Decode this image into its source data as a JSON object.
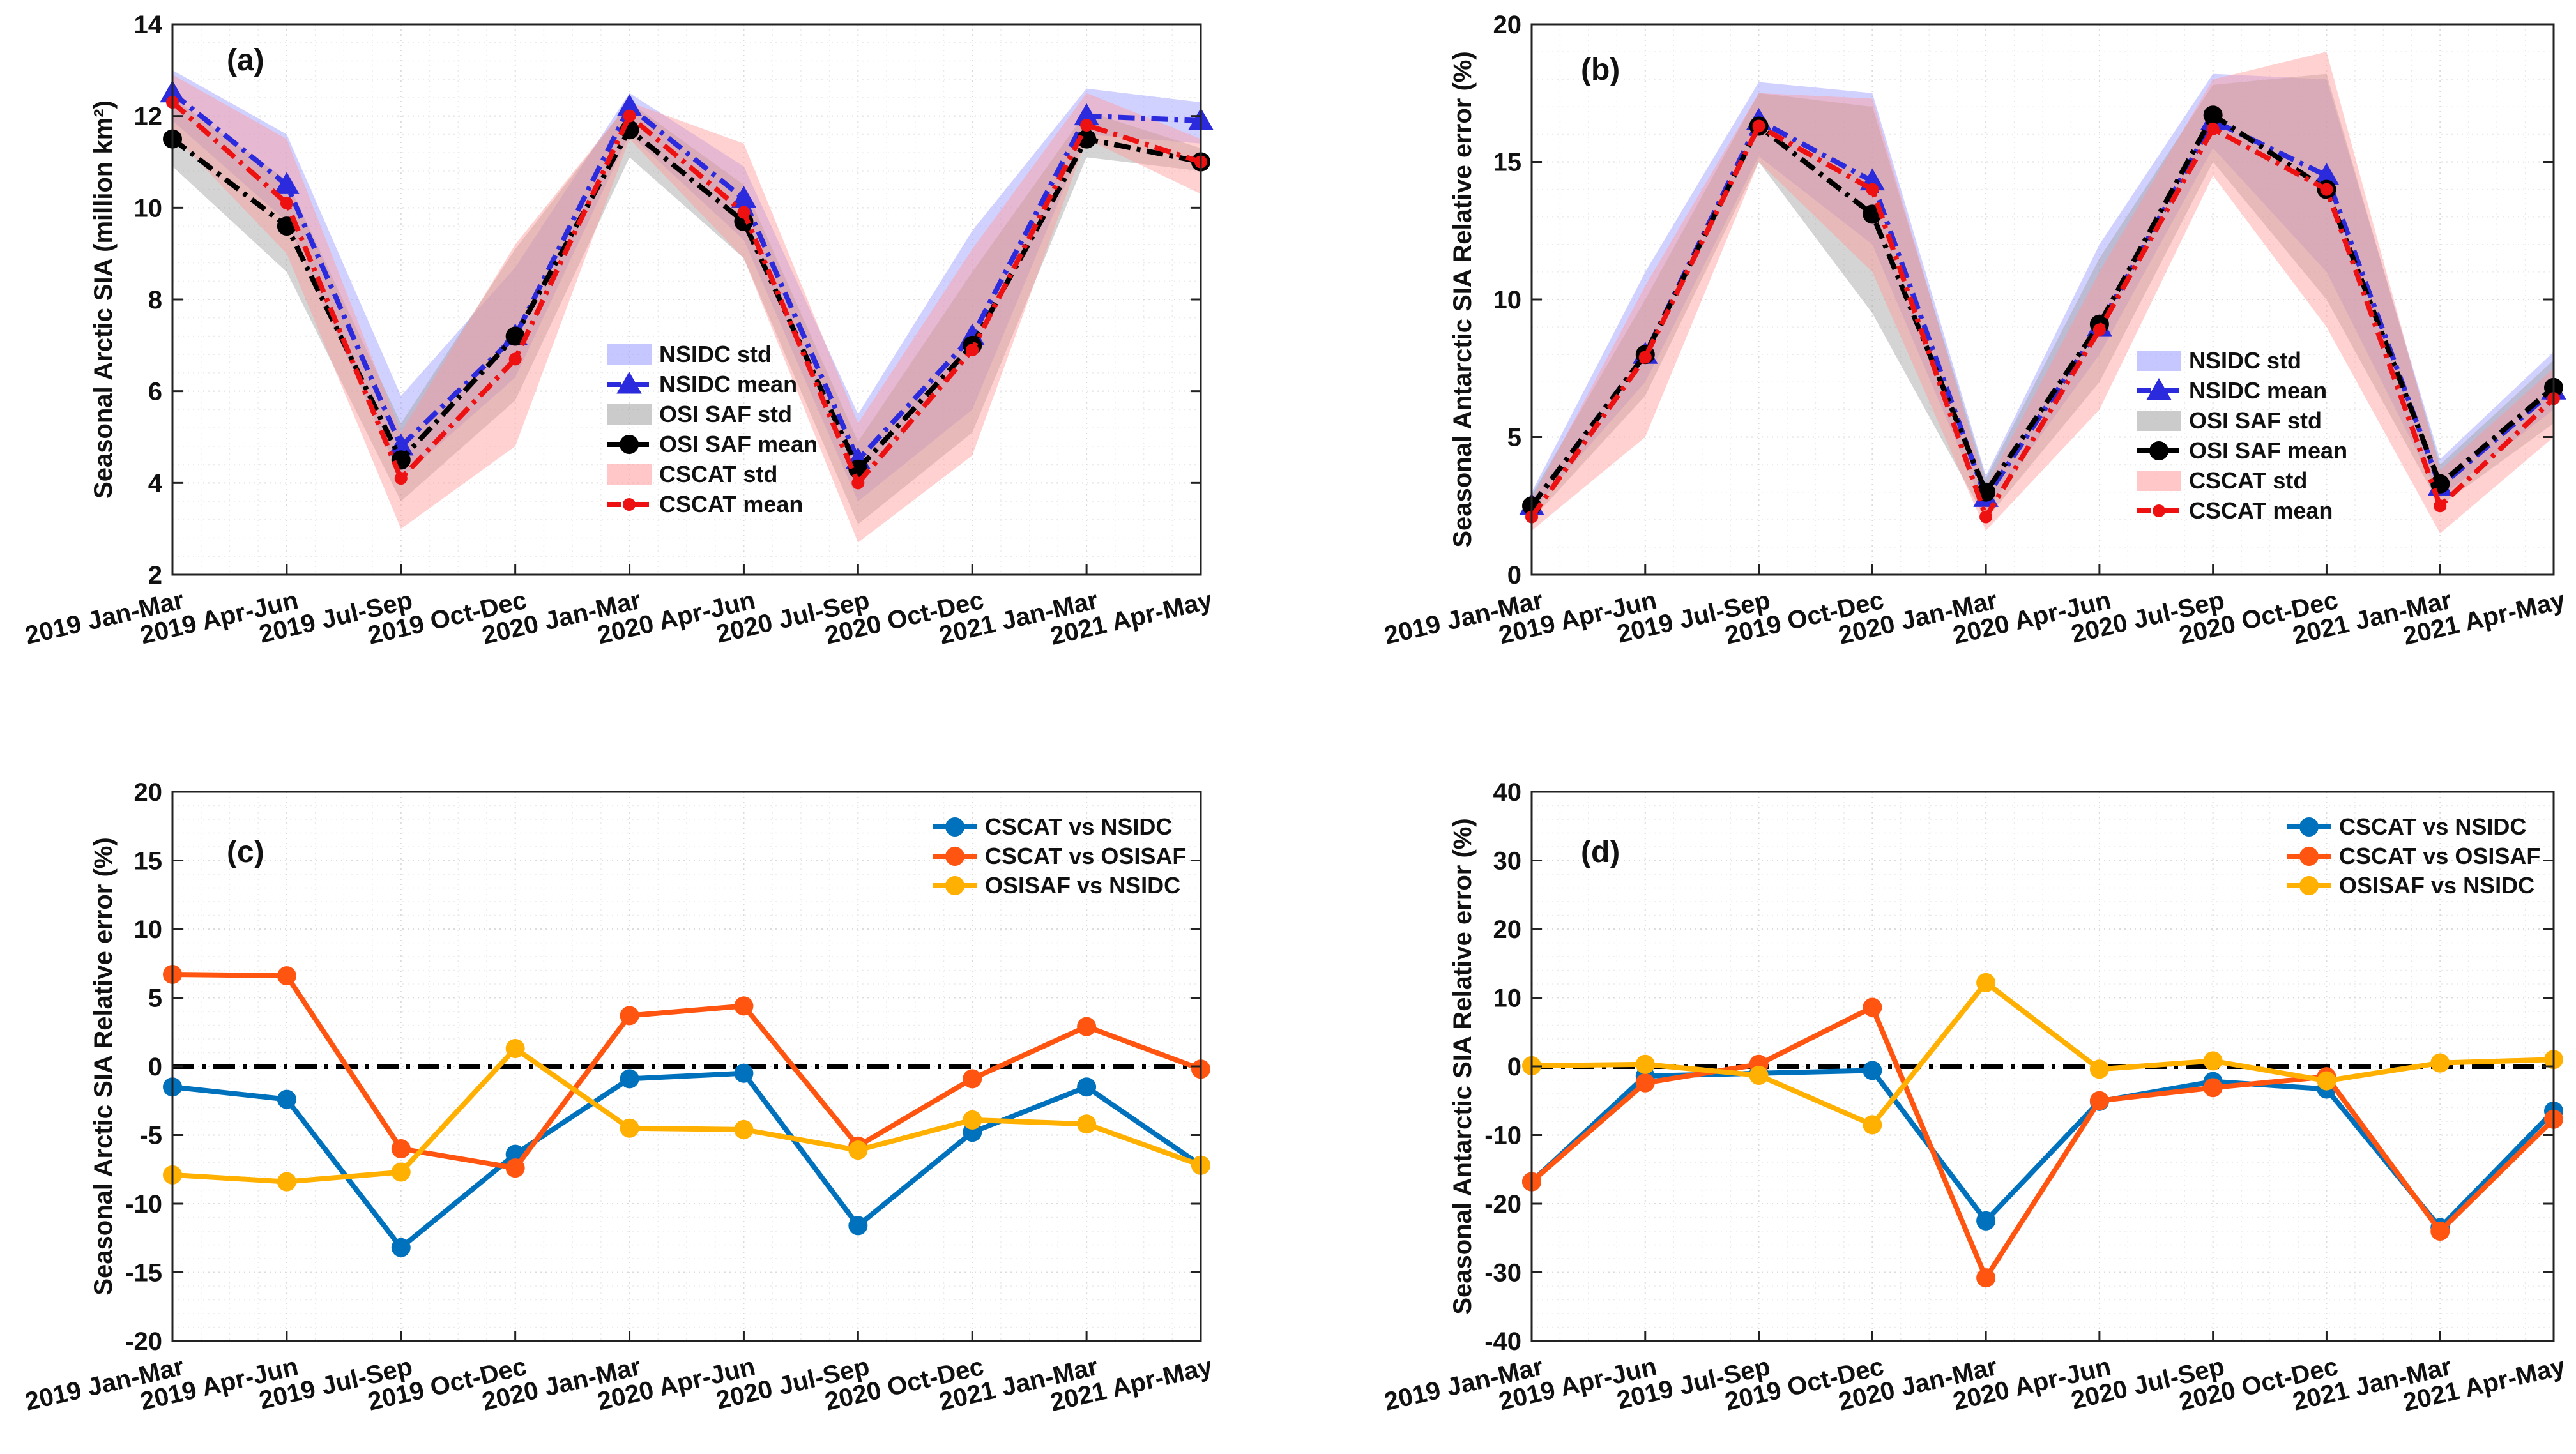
{
  "chart_data": [
    {
      "id": "a",
      "type": "line_band",
      "panel_label": "(a)",
      "ylabel": "Seasonal Arctic SIA (million km²)",
      "ylim": [
        2,
        14
      ],
      "yticks": [
        2,
        4,
        6,
        8,
        10,
        12,
        14
      ],
      "categories": [
        "2019 Jan-Mar",
        "2019 Apr-Jun",
        "2019 Jul-Sep",
        "2019 Oct-Dec",
        "2020 Jan-Mar",
        "2020 Apr-Jun",
        "2020 Jul-Sep",
        "2020 Oct-Dec",
        "2021 Jan-Mar",
        "2021 Apr-May"
      ],
      "legend_position": "center-right",
      "bands": [
        {
          "name": "NSIDC std",
          "color": "#9999ff",
          "lower": [
            11.9,
            9.7,
            4.1,
            6.3,
            11.6,
            9.3,
            3.6,
            5.6,
            11.6,
            11.4
          ],
          "upper": [
            13.0,
            11.6,
            5.9,
            8.7,
            12.5,
            10.9,
            5.5,
            9.5,
            12.6,
            12.3
          ]
        },
        {
          "name": "OSI SAF std",
          "color": "#a0a0a0",
          "lower": [
            10.9,
            8.6,
            3.6,
            5.8,
            11.1,
            8.9,
            3.1,
            5.1,
            11.1,
            10.8
          ],
          "upper": [
            12.4,
            10.6,
            5.3,
            9.1,
            12.3,
            10.5,
            4.9,
            8.6,
            12.1,
            11.3
          ]
        },
        {
          "name": "CSCAT std",
          "color": "#ff9999",
          "lower": [
            11.6,
            9.0,
            3.0,
            4.8,
            11.5,
            8.9,
            2.7,
            4.6,
            11.5,
            10.3
          ],
          "upper": [
            12.9,
            11.5,
            5.1,
            9.2,
            12.3,
            11.4,
            5.3,
            9.1,
            12.5,
            11.5
          ]
        }
      ],
      "series": [
        {
          "name": "NSIDC mean",
          "color": "#2b2bdd",
          "marker": "triangle",
          "values": [
            12.5,
            10.5,
            4.8,
            7.2,
            12.2,
            10.2,
            4.5,
            7.2,
            12.0,
            11.9
          ]
        },
        {
          "name": "OSI SAF mean",
          "color": "#000000",
          "marker": "circle",
          "values": [
            11.5,
            9.6,
            4.5,
            7.2,
            11.7,
            9.7,
            4.3,
            7.0,
            11.5,
            11.0
          ]
        },
        {
          "name": "CSCAT mean",
          "color": "#ee1111",
          "marker": "dot",
          "values": [
            12.3,
            10.1,
            4.1,
            6.7,
            12.0,
            9.9,
            4.0,
            6.9,
            11.8,
            11.0
          ]
        }
      ],
      "legend": [
        "NSIDC std",
        "NSIDC mean",
        "OSI SAF std",
        "OSI SAF mean",
        "CSCAT std",
        "CSCAT mean"
      ]
    },
    {
      "id": "b",
      "type": "line_band",
      "panel_label": "(b)",
      "ylabel": "Seasonal Antarctic SIA Relative error (%)",
      "ylim": [
        0,
        20
      ],
      "yticks": [
        0,
        5,
        10,
        15,
        20
      ],
      "categories": [
        "2019 Jan-Mar",
        "2019 Apr-Jun",
        "2019 Jul-Sep",
        "2019 Oct-Dec",
        "2020 Jan-Mar",
        "2020 Apr-Jun",
        "2020 Jul-Sep",
        "2020 Oct-Dec",
        "2021 Jan-Mar",
        "2021 Apr-May"
      ],
      "legend_position": "center-right",
      "bands": [
        {
          "name": "NSIDC std",
          "color": "#9999ff",
          "lower": [
            2.3,
            7.0,
            15.2,
            12.0,
            2.3,
            8.0,
            15.5,
            11.0,
            2.8,
            6.0
          ],
          "upper": [
            3.0,
            11.0,
            17.9,
            17.5,
            3.6,
            12.0,
            18.2,
            18.0,
            4.2,
            8.1
          ]
        },
        {
          "name": "OSI SAF std",
          "color": "#a0a0a0",
          "lower": [
            2.0,
            6.5,
            15.0,
            9.5,
            2.0,
            7.0,
            15.0,
            10.0,
            2.5,
            5.5
          ],
          "upper": [
            2.9,
            10.0,
            17.5,
            17.0,
            3.5,
            11.5,
            17.8,
            18.2,
            4.0,
            7.8
          ]
        },
        {
          "name": "CSCAT std",
          "color": "#ff9999",
          "lower": [
            1.6,
            5.0,
            15.0,
            11.0,
            1.6,
            6.0,
            14.5,
            9.0,
            1.5,
            5.0
          ],
          "upper": [
            2.7,
            10.5,
            17.5,
            17.3,
            3.2,
            11.0,
            18.0,
            19.0,
            3.8,
            7.5
          ]
        }
      ],
      "series": [
        {
          "name": "NSIDC mean",
          "color": "#2b2bdd",
          "marker": "triangle",
          "values": [
            2.5,
            8.0,
            16.5,
            14.3,
            2.8,
            9.0,
            16.5,
            14.5,
            3.2,
            6.7
          ]
        },
        {
          "name": "OSI SAF mean",
          "color": "#000000",
          "marker": "circle",
          "values": [
            2.5,
            8.0,
            16.3,
            13.1,
            3.0,
            9.1,
            16.7,
            14.0,
            3.3,
            6.8
          ]
        },
        {
          "name": "CSCAT mean",
          "color": "#ee1111",
          "marker": "dot",
          "values": [
            2.1,
            7.9,
            16.3,
            14.0,
            2.1,
            8.9,
            16.2,
            14.0,
            2.5,
            6.4
          ]
        }
      ],
      "legend": [
        "NSIDC std",
        "NSIDC mean",
        "OSI SAF std",
        "OSI SAF mean",
        "CSCAT std",
        "CSCAT mean"
      ]
    },
    {
      "id": "c",
      "type": "line",
      "panel_label": "(c)",
      "ylabel": "Seasonal Arctic SIA Relative error (%)",
      "ylim": [
        -20,
        20
      ],
      "yticks": [
        -20,
        -15,
        -10,
        -5,
        0,
        5,
        10,
        15,
        20
      ],
      "categories": [
        "2019 Jan-Mar",
        "2019 Apr-Jun",
        "2019 Jul-Sep",
        "2019 Oct-Dec",
        "2020 Jan-Mar",
        "2020 Apr-Jun",
        "2020 Jul-Sep",
        "2020 Oct-Dec",
        "2021 Jan-Mar",
        "2021 Apr-May"
      ],
      "legend_position": "top-right",
      "reference_line": 0,
      "series": [
        {
          "name": "CSCAT vs NSIDC",
          "color": "#0072bd",
          "values": [
            -1.5,
            -2.4,
            -13.2,
            -6.4,
            -0.9,
            -0.5,
            -11.6,
            -4.8,
            -1.5,
            -7.2
          ]
        },
        {
          "name": "CSCAT vs OSISAF",
          "color": "#ff5511",
          "values": [
            6.7,
            6.6,
            -6.0,
            -7.4,
            3.7,
            4.4,
            -5.8,
            -0.9,
            2.9,
            -0.2
          ]
        },
        {
          "name": "OSISAF vs NSIDC",
          "color": "#ffb000",
          "values": [
            -7.9,
            -8.4,
            -7.7,
            1.3,
            -4.5,
            -4.6,
            -6.1,
            -3.9,
            -4.2,
            -7.2
          ]
        }
      ],
      "legend": [
        "CSCAT vs NSIDC",
        "CSCAT vs OSISAF",
        "OSISAF vs NSIDC"
      ]
    },
    {
      "id": "d",
      "type": "line",
      "panel_label": "(d)",
      "ylabel": "Seasonal Antarctic SIA Relative error (%)",
      "ylim": [
        -40,
        40
      ],
      "yticks": [
        -40,
        -30,
        -20,
        -10,
        0,
        10,
        20,
        30,
        40
      ],
      "categories": [
        "2019 Jan-Mar",
        "2019 Apr-Jun",
        "2019 Jul-Sep",
        "2019 Oct-Dec",
        "2020 Jan-Mar",
        "2020 Apr-Jun",
        "2020 Jul-Sep",
        "2020 Oct-Dec",
        "2021 Jan-Mar",
        "2021 Apr-May"
      ],
      "legend_position": "top-right",
      "reference_line": 0,
      "series": [
        {
          "name": "CSCAT vs NSIDC",
          "color": "#0072bd",
          "values": [
            -16.8,
            -1.4,
            -1.0,
            -0.6,
            -22.5,
            -5.1,
            -2.2,
            -3.3,
            -23.5,
            -6.5
          ]
        },
        {
          "name": "CSCAT vs OSISAF",
          "color": "#ff5511",
          "values": [
            -16.8,
            -2.4,
            0.3,
            8.6,
            -30.8,
            -5.0,
            -3.1,
            -1.5,
            -24.0,
            -7.7
          ]
        },
        {
          "name": "OSISAF vs NSIDC",
          "color": "#ffb000",
          "values": [
            0.1,
            0.3,
            -1.3,
            -8.5,
            12.2,
            -0.4,
            0.8,
            -2.1,
            0.5,
            1.0
          ]
        }
      ],
      "legend": [
        "CSCAT vs NSIDC",
        "CSCAT vs OSISAF",
        "OSISAF vs NSIDC"
      ]
    }
  ]
}
